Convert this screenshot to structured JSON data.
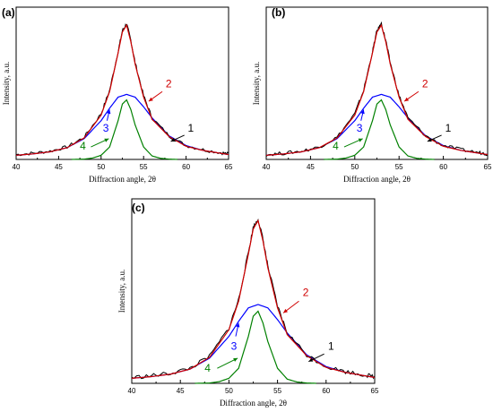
{
  "chart_data": [
    {
      "type": "line",
      "panel_label": "(a)",
      "xlabel": "Diffraction angle, 2θ",
      "ylabel": "Intensity, a.u.",
      "xlim": [
        40,
        65
      ],
      "xticks": [
        "40",
        "45",
        "50",
        "55",
        "60",
        "65"
      ],
      "series": [
        {
          "label": "1",
          "color": "#000000",
          "x": [
            40,
            42,
            44,
            46,
            48,
            50,
            51,
            52,
            52.5,
            53,
            53.5,
            54,
            55,
            56,
            58,
            60,
            62,
            64,
            65
          ],
          "y": [
            0.035,
            0.045,
            0.06,
            0.09,
            0.16,
            0.33,
            0.5,
            0.78,
            0.93,
            0.98,
            0.86,
            0.7,
            0.46,
            0.3,
            0.17,
            0.1,
            0.07,
            0.05,
            0.04
          ]
        },
        {
          "label": "2",
          "color": "#d00000",
          "x": [
            40,
            42,
            44,
            46,
            48,
            50,
            51,
            52,
            52.5,
            53,
            53.5,
            54,
            55,
            56,
            58,
            60,
            62,
            64,
            65
          ],
          "y": [
            0.03,
            0.04,
            0.055,
            0.085,
            0.155,
            0.32,
            0.49,
            0.77,
            0.92,
            0.97,
            0.85,
            0.69,
            0.45,
            0.29,
            0.165,
            0.095,
            0.065,
            0.045,
            0.035
          ]
        },
        {
          "label": "3",
          "color": "#0000ff",
          "x": [
            40,
            42,
            44,
            46,
            48,
            50,
            51,
            52,
            53,
            54,
            55,
            56,
            58,
            60,
            62,
            64,
            65
          ],
          "y": [
            0.03,
            0.04,
            0.055,
            0.085,
            0.15,
            0.28,
            0.37,
            0.45,
            0.47,
            0.45,
            0.38,
            0.3,
            0.17,
            0.1,
            0.065,
            0.045,
            0.035
          ]
        },
        {
          "label": "4",
          "color": "#008000",
          "x": [
            46.5,
            48,
            49,
            50,
            51,
            52,
            52.5,
            53,
            53.5,
            54,
            55,
            56,
            57,
            58,
            59
          ],
          "y": [
            0.0,
            0.002,
            0.01,
            0.03,
            0.09,
            0.28,
            0.4,
            0.43,
            0.36,
            0.25,
            0.09,
            0.025,
            0.008,
            0.002,
            0.0
          ]
        }
      ]
    },
    {
      "type": "line",
      "panel_label": "(b)",
      "xlabel": "Diffraction angle, 2θ",
      "ylabel": "Intensity, a.u.",
      "xlim": [
        40,
        65
      ],
      "xticks": [
        "40",
        "45",
        "50",
        "55",
        "60",
        "65"
      ],
      "series": [
        {
          "label": "1",
          "color": "#000000",
          "x": [
            40,
            42,
            44,
            46,
            48,
            50,
            51,
            52,
            52.5,
            53,
            53.5,
            54,
            55,
            56,
            58,
            60,
            62,
            64,
            65
          ],
          "y": [
            0.035,
            0.045,
            0.06,
            0.09,
            0.16,
            0.33,
            0.5,
            0.78,
            0.93,
            0.98,
            0.86,
            0.7,
            0.46,
            0.3,
            0.17,
            0.1,
            0.07,
            0.05,
            0.04
          ]
        },
        {
          "label": "2",
          "color": "#d00000",
          "x": [
            40,
            42,
            44,
            46,
            48,
            50,
            51,
            52,
            52.5,
            53,
            53.5,
            54,
            55,
            56,
            58,
            60,
            62,
            64,
            65
          ],
          "y": [
            0.03,
            0.04,
            0.055,
            0.085,
            0.155,
            0.32,
            0.49,
            0.77,
            0.92,
            0.97,
            0.85,
            0.69,
            0.45,
            0.29,
            0.165,
            0.095,
            0.065,
            0.045,
            0.035
          ]
        },
        {
          "label": "3",
          "color": "#0000ff",
          "x": [
            40,
            42,
            44,
            46,
            48,
            50,
            51,
            52,
            53,
            54,
            55,
            56,
            58,
            60,
            62,
            64,
            65
          ],
          "y": [
            0.03,
            0.04,
            0.055,
            0.085,
            0.15,
            0.28,
            0.37,
            0.45,
            0.47,
            0.45,
            0.38,
            0.3,
            0.17,
            0.1,
            0.065,
            0.045,
            0.035
          ]
        },
        {
          "label": "4",
          "color": "#008000",
          "x": [
            46.5,
            48,
            49,
            50,
            51,
            52,
            52.5,
            53,
            53.5,
            54,
            55,
            56,
            57,
            58,
            59
          ],
          "y": [
            0.0,
            0.002,
            0.01,
            0.03,
            0.09,
            0.28,
            0.4,
            0.43,
            0.36,
            0.25,
            0.09,
            0.025,
            0.008,
            0.002,
            0.0
          ]
        }
      ]
    },
    {
      "type": "line",
      "panel_label": "(c)",
      "xlabel": "Diffraction angle, 2θ",
      "ylabel": "Intensity, a.u.",
      "xlim": [
        40,
        65
      ],
      "xticks": [
        "40",
        "45",
        "50",
        "55",
        "60",
        "65"
      ],
      "series": [
        {
          "label": "1",
          "color": "#000000",
          "x": [
            40,
            42,
            44,
            46,
            48,
            50,
            51,
            52,
            52.5,
            53,
            53.5,
            54,
            55,
            56,
            58,
            60,
            62,
            64,
            65
          ],
          "y": [
            0.035,
            0.045,
            0.06,
            0.09,
            0.16,
            0.33,
            0.5,
            0.78,
            0.93,
            0.98,
            0.86,
            0.7,
            0.46,
            0.3,
            0.17,
            0.1,
            0.07,
            0.05,
            0.04
          ]
        },
        {
          "label": "2",
          "color": "#d00000",
          "x": [
            40,
            42,
            44,
            46,
            48,
            50,
            51,
            52,
            52.5,
            53,
            53.5,
            54,
            55,
            56,
            58,
            60,
            62,
            64,
            65
          ],
          "y": [
            0.03,
            0.04,
            0.055,
            0.085,
            0.155,
            0.32,
            0.49,
            0.77,
            0.92,
            0.97,
            0.85,
            0.69,
            0.45,
            0.29,
            0.165,
            0.095,
            0.065,
            0.045,
            0.035
          ]
        },
        {
          "label": "3",
          "color": "#0000ff",
          "x": [
            40,
            42,
            44,
            46,
            48,
            50,
            51,
            52,
            53,
            54,
            55,
            56,
            58,
            60,
            62,
            64,
            65
          ],
          "y": [
            0.03,
            0.04,
            0.055,
            0.085,
            0.15,
            0.28,
            0.37,
            0.45,
            0.47,
            0.45,
            0.38,
            0.3,
            0.17,
            0.1,
            0.065,
            0.045,
            0.035
          ]
        },
        {
          "label": "4",
          "color": "#008000",
          "x": [
            46.5,
            48,
            49,
            50,
            51,
            52,
            52.5,
            53,
            53.5,
            54,
            55,
            56,
            57,
            58,
            59
          ],
          "y": [
            0.0,
            0.002,
            0.01,
            0.03,
            0.09,
            0.28,
            0.4,
            0.43,
            0.36,
            0.25,
            0.09,
            0.025,
            0.008,
            0.002,
            0.0
          ]
        }
      ]
    }
  ]
}
